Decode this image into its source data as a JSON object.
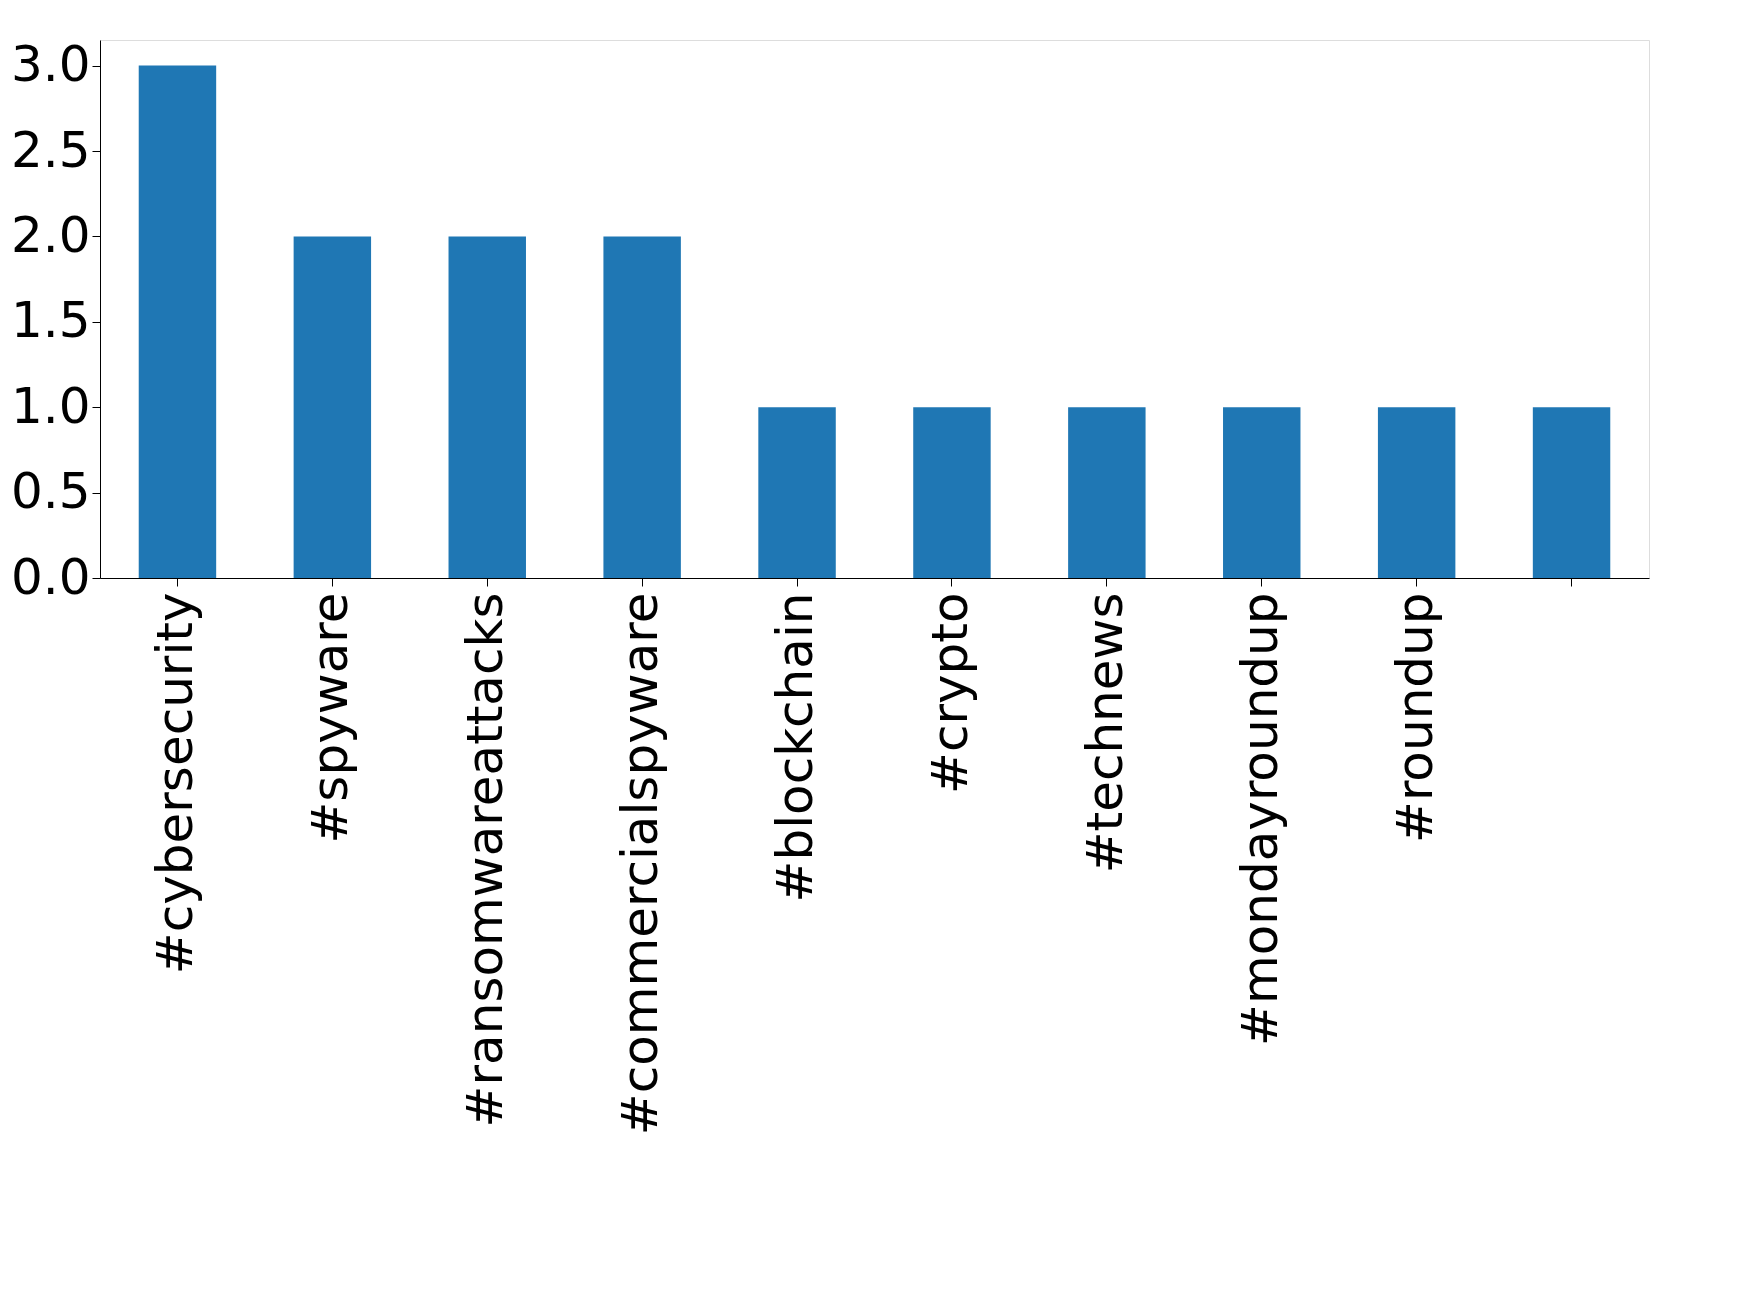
{
  "chart_data": {
    "type": "bar",
    "categories": [
      "#cybersecurity",
      "#spyware",
      "#ransomwareattacks",
      "#commercialspyware",
      "#blockchain",
      "#crypto",
      "#technews",
      "#mondayroundup",
      "#roundup",
      null
    ],
    "values": [
      3,
      2,
      2,
      2,
      1,
      1,
      1,
      1,
      1,
      1
    ],
    "color": "#1f77b4",
    "ylim": [
      0,
      3.15
    ],
    "yticks": [
      {
        "value": 0,
        "label": "0.0"
      },
      {
        "value": 0.5,
        "label": "0.5"
      },
      {
        "value": 1,
        "label": "1.0"
      },
      {
        "value": 1.5,
        "label": "1.5"
      },
      {
        "value": 2,
        "label": "2.0"
      },
      {
        "value": 2.5,
        "label": "2.5"
      },
      {
        "value": 3,
        "label": "3.0"
      }
    ],
    "grid": false
  }
}
